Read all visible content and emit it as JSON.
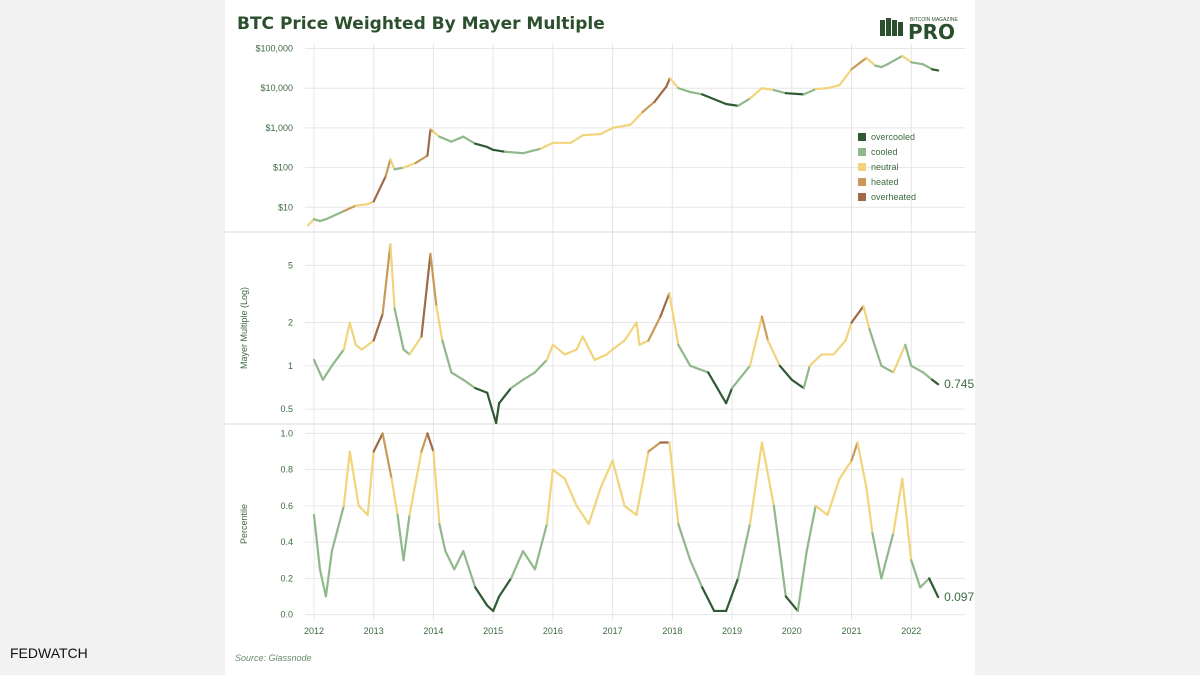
{
  "title": "BTC Price Weighted By Mayer Multiple",
  "logo": {
    "top_text": "BITCOIN MAGAZINE",
    "main_text": "PRO",
    "icon": "bm-logo-icon"
  },
  "source": "Source: Glassnode",
  "watermark": "FEDWATCH",
  "colors": {
    "overcooled": "#2f5a34",
    "cooled": "#8fb98a",
    "neutral": "#f1d47c",
    "heated": "#c89a5a",
    "overheated": "#a06a4a",
    "text": "#3d6b3f",
    "grid": "#e6e6e6",
    "title": "#2c4f2e"
  },
  "chart_data": [
    {
      "type": "line",
      "panel": "price",
      "scale": "log",
      "ylim": [
        3,
        130000
      ],
      "yticks": [
        10,
        100,
        1000,
        10000,
        100000
      ],
      "ytick_labels": [
        "$10",
        "$100",
        "$1,000",
        "$10,000",
        "$100,000"
      ],
      "xlim": [
        2011.85,
        2022.9
      ],
      "legend": {
        "placement": "right-middle",
        "entries": [
          "overcooled",
          "cooled",
          "neutral",
          "heated",
          "overheated"
        ]
      },
      "series": [
        {
          "x": [
            2011.9,
            2012.0,
            2012.1,
            2012.2,
            2012.5,
            2012.7,
            2012.9,
            2013.0,
            2013.2,
            2013.28,
            2013.35,
            2013.5,
            2013.7,
            2013.9,
            2013.95,
            2014.0,
            2014.1,
            2014.3,
            2014.5,
            2014.7,
            2014.9,
            2015.0,
            2015.2,
            2015.5,
            2015.8,
            2016.0,
            2016.3,
            2016.5,
            2016.8,
            2017.0,
            2017.3,
            2017.5,
            2017.7,
            2017.9,
            2017.96,
            2018.1,
            2018.3,
            2018.5,
            2018.9,
            2019.1,
            2019.3,
            2019.5,
            2019.7,
            2019.9,
            2020.2,
            2020.4,
            2020.6,
            2020.8,
            2021.0,
            2021.25,
            2021.4,
            2021.5,
            2021.6,
            2021.85,
            2022.0,
            2022.2,
            2022.35,
            2022.45
          ],
          "y": [
            3.5,
            5,
            4.5,
            5,
            8,
            11,
            12,
            14,
            60,
            160,
            90,
            100,
            130,
            200,
            900,
            800,
            600,
            450,
            600,
            400,
            330,
            280,
            250,
            230,
            300,
            420,
            420,
            650,
            700,
            1000,
            1200,
            2500,
            4500,
            11000,
            18000,
            10000,
            8000,
            7000,
            4000,
            3600,
            5500,
            10000,
            9000,
            7500,
            7000,
            9500,
            10000,
            12000,
            30000,
            58000,
            37000,
            34000,
            40000,
            65000,
            45000,
            40000,
            30000,
            28000
          ]
        }
      ]
    },
    {
      "type": "line",
      "panel": "mayer_multiple",
      "ylabel": "Mayer Multiple (Log)",
      "scale": "log",
      "ylim": [
        0.42,
        8
      ],
      "yticks": [
        0.5,
        1,
        2,
        5
      ],
      "ytick_labels": [
        "0.5",
        "1",
        "2",
        "5"
      ],
      "xlim": [
        2011.85,
        2022.9
      ],
      "last_value_label": "0.745",
      "series": [
        {
          "x": [
            2012.0,
            2012.15,
            2012.3,
            2012.5,
            2012.6,
            2012.7,
            2012.8,
            2013.0,
            2013.15,
            2013.28,
            2013.35,
            2013.5,
            2013.6,
            2013.8,
            2013.95,
            2014.05,
            2014.15,
            2014.3,
            2014.5,
            2014.7,
            2014.9,
            2015.05,
            2015.1,
            2015.3,
            2015.5,
            2015.7,
            2015.9,
            2016.0,
            2016.2,
            2016.4,
            2016.5,
            2016.7,
            2016.9,
            2017.0,
            2017.2,
            2017.4,
            2017.45,
            2017.6,
            2017.8,
            2017.95,
            2018.1,
            2018.3,
            2018.6,
            2018.9,
            2019.0,
            2019.3,
            2019.5,
            2019.6,
            2019.8,
            2020.0,
            2020.2,
            2020.3,
            2020.5,
            2020.7,
            2020.9,
            2021.0,
            2021.2,
            2021.3,
            2021.5,
            2021.7,
            2021.9,
            2022.0,
            2022.2,
            2022.35,
            2022.45
          ],
          "y": [
            1.1,
            0.8,
            1.0,
            1.3,
            2.0,
            1.4,
            1.3,
            1.5,
            2.3,
            7.0,
            2.5,
            1.3,
            1.2,
            1.6,
            6.0,
            2.6,
            1.5,
            0.9,
            0.8,
            0.7,
            0.65,
            0.4,
            0.55,
            0.7,
            0.8,
            0.9,
            1.1,
            1.4,
            1.2,
            1.3,
            1.6,
            1.1,
            1.2,
            1.3,
            1.5,
            2.0,
            1.4,
            1.5,
            2.2,
            3.2,
            1.4,
            1.0,
            0.9,
            0.55,
            0.7,
            1.0,
            2.2,
            1.5,
            1.0,
            0.8,
            0.7,
            1.0,
            1.2,
            1.2,
            1.5,
            2.0,
            2.6,
            1.8,
            1.0,
            0.9,
            1.4,
            1.0,
            0.9,
            0.8,
            0.745
          ]
        }
      ]
    },
    {
      "type": "line",
      "panel": "percentile",
      "ylabel": "Percentile",
      "ylim": [
        -0.03,
        1.03
      ],
      "yticks": [
        0.0,
        0.2,
        0.4,
        0.6,
        0.8,
        1.0
      ],
      "ytick_labels": [
        "0.0",
        "0.2",
        "0.4",
        "0.6",
        "0.8",
        "1.0"
      ],
      "xticks": [
        2012,
        2013,
        2014,
        2015,
        2016,
        2017,
        2018,
        2019,
        2020,
        2021,
        2022
      ],
      "xtick_labels": [
        "2012",
        "2013",
        "2014",
        "2015",
        "2016",
        "2017",
        "2018",
        "2019",
        "2020",
        "2021",
        "2022"
      ],
      "xlim": [
        2011.85,
        2022.9
      ],
      "last_value_label": "0.097",
      "series": [
        {
          "x": [
            2012.0,
            2012.1,
            2012.2,
            2012.3,
            2012.5,
            2012.6,
            2012.75,
            2012.9,
            2013.0,
            2013.15,
            2013.3,
            2013.4,
            2013.5,
            2013.6,
            2013.8,
            2013.9,
            2014.0,
            2014.1,
            2014.2,
            2014.35,
            2014.5,
            2014.7,
            2014.9,
            2015.0,
            2015.1,
            2015.3,
            2015.5,
            2015.7,
            2015.9,
            2016.0,
            2016.2,
            2016.4,
            2016.6,
            2016.8,
            2017.0,
            2017.2,
            2017.4,
            2017.6,
            2017.8,
            2017.95,
            2018.1,
            2018.3,
            2018.5,
            2018.7,
            2018.9,
            2019.1,
            2019.3,
            2019.5,
            2019.7,
            2019.9,
            2020.1,
            2020.25,
            2020.4,
            2020.6,
            2020.8,
            2021.0,
            2021.1,
            2021.25,
            2021.35,
            2021.5,
            2021.7,
            2021.85,
            2022.0,
            2022.15,
            2022.3,
            2022.45
          ],
          "y": [
            0.55,
            0.25,
            0.1,
            0.35,
            0.6,
            0.9,
            0.6,
            0.55,
            0.9,
            1.0,
            0.75,
            0.55,
            0.3,
            0.55,
            0.9,
            1.0,
            0.9,
            0.5,
            0.35,
            0.25,
            0.35,
            0.15,
            0.05,
            0.02,
            0.1,
            0.2,
            0.35,
            0.25,
            0.5,
            0.8,
            0.75,
            0.6,
            0.5,
            0.7,
            0.85,
            0.6,
            0.55,
            0.9,
            0.95,
            0.95,
            0.5,
            0.3,
            0.15,
            0.02,
            0.02,
            0.2,
            0.5,
            0.95,
            0.6,
            0.1,
            0.02,
            0.35,
            0.6,
            0.55,
            0.75,
            0.85,
            0.95,
            0.7,
            0.45,
            0.2,
            0.45,
            0.75,
            0.3,
            0.15,
            0.2,
            0.097
          ]
        }
      ]
    }
  ]
}
